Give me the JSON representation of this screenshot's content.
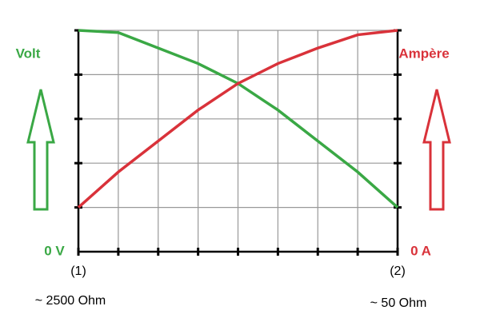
{
  "chart_data": {
    "type": "line",
    "x": [
      0,
      1,
      2,
      3,
      4,
      5,
      6,
      7,
      8
    ],
    "series": [
      {
        "name": "Volt",
        "color": "#3aa845",
        "values": [
          5,
          4.95,
          4.6,
          4.25,
          3.8,
          3.2,
          2.5,
          1.8,
          1
        ]
      },
      {
        "name": "Ampère",
        "color": "#d9323a",
        "values": [
          1,
          1.8,
          2.5,
          3.2,
          3.8,
          4.25,
          4.6,
          4.9,
          5
        ]
      }
    ],
    "xlim": [
      0,
      8
    ],
    "ylim": [
      0,
      5
    ],
    "xticks": [
      0,
      1,
      2,
      3,
      4,
      5,
      6,
      7,
      8
    ],
    "yticks": [
      1,
      2,
      3,
      4,
      5
    ],
    "grid": true,
    "y_zero_labels": [
      "0 V",
      "0 A"
    ],
    "x_end_labels": [
      "(1)",
      "(2)"
    ],
    "annotations": [
      "~ 2500 Ohm",
      "~ 50 Ohm"
    ]
  }
}
